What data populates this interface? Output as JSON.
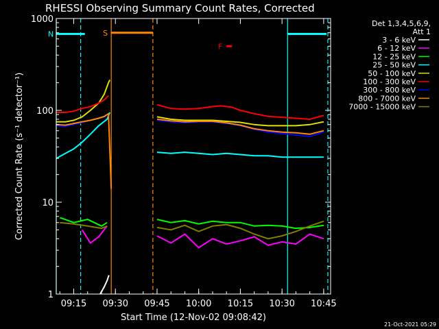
{
  "chart_data": {
    "type": "line",
    "title": "RHESSI Observing Summary Count Rates, Corrected",
    "xlabel": "Start Time (12-Nov-02 09:08:42)",
    "ylabel": "Corrected Count Rate (s⁻¹ detector⁻¹)",
    "y_scale": "log",
    "ylim": [
      1,
      1000
    ],
    "xlim": [
      "09:08:42",
      "10:47:30"
    ],
    "x_ticks": [
      "09:15",
      "09:30",
      "09:45",
      "10:00",
      "10:15",
      "10:30",
      "10:45"
    ],
    "y_ticks": [
      "1",
      "10",
      "100",
      "1000"
    ],
    "legend": {
      "placement": "top-right",
      "header": [
        "Det 1,3,4,5,6,9,",
        "Att 1"
      ]
    },
    "timestamp": "21-Oct-2021 05:29",
    "flags": [
      {
        "label": "S",
        "color": "#ff8800",
        "x_start": "09:28:30",
        "x_end": "09:43:30",
        "y": 700
      },
      {
        "label": "N",
        "color": "#00ffff",
        "x_start": "09:08:42",
        "x_end": "09:19:00",
        "y": 680
      },
      {
        "label": "F",
        "color": "#ff0000",
        "x_start": "10:10:00",
        "x_end": "10:12:00",
        "y": 500
      },
      {
        "label": "",
        "color": "#00ffff",
        "x_start": "10:32:00",
        "x_end": "10:46:00",
        "y": 680
      }
    ],
    "markers": [
      {
        "x": "09:08:42",
        "style": "solid",
        "color": "#00ffff"
      },
      {
        "x": "09:17:30",
        "style": "dashed",
        "color": "#00ffff"
      },
      {
        "x": "09:28:30",
        "style": "solid",
        "color": "#ff8800"
      },
      {
        "x": "09:43:30",
        "style": "dashed",
        "color": "#ff8800"
      },
      {
        "x": "10:32:00",
        "style": "solid",
        "color": "#00ffff"
      },
      {
        "x": "10:46:30",
        "style": "dashed",
        "color": "#00ffff"
      }
    ],
    "series": [
      {
        "name": "3 - 6 keV",
        "color": "#ffffff",
        "points": [
          [
            "09:24:30",
            1.0
          ],
          [
            "09:26:00",
            1.2
          ],
          [
            "09:27:00",
            1.4
          ],
          [
            "09:27:40",
            1.6
          ]
        ]
      },
      {
        "name": "6 - 12 keV",
        "color": "#ff00ff",
        "points": [
          [
            "09:18:00",
            5.0
          ],
          [
            "09:21:00",
            3.6
          ],
          [
            "09:24:00",
            4.2
          ],
          [
            "09:27:00",
            5.5
          ],
          [
            "09:45:00",
            4.3
          ],
          [
            "09:50:00",
            3.6
          ],
          [
            "09:55:00",
            4.5
          ],
          [
            "10:00:00",
            3.2
          ],
          [
            "10:05:00",
            4.0
          ],
          [
            "10:10:00",
            3.5
          ],
          [
            "10:15:00",
            3.8
          ],
          [
            "10:20:00",
            4.2
          ],
          [
            "10:25:00",
            3.4
          ],
          [
            "10:30:00",
            3.7
          ],
          [
            "10:35:00",
            3.5
          ],
          [
            "10:40:00",
            4.5
          ],
          [
            "10:45:00",
            4.0
          ]
        ]
      },
      {
        "name": "12 - 25 keV",
        "color": "#00ff00",
        "points": [
          [
            "09:10:00",
            6.8
          ],
          [
            "09:15:00",
            6.0
          ],
          [
            "09:20:00",
            6.5
          ],
          [
            "09:25:00",
            5.5
          ],
          [
            "09:27:00",
            6.0
          ],
          [
            "09:45:00",
            6.5
          ],
          [
            "09:50:00",
            6.0
          ],
          [
            "09:55:00",
            6.3
          ],
          [
            "10:00:00",
            5.8
          ],
          [
            "10:05:00",
            6.2
          ],
          [
            "10:10:00",
            6.0
          ],
          [
            "10:15:00",
            6.0
          ],
          [
            "10:20:00",
            5.5
          ],
          [
            "10:25:00",
            5.6
          ],
          [
            "10:30:00",
            5.5
          ],
          [
            "10:35:00",
            5.2
          ],
          [
            "10:40:00",
            5.3
          ],
          [
            "10:45:00",
            5.6
          ]
        ]
      },
      {
        "name": "25 - 50 keV",
        "color": "#00ffff",
        "points": [
          [
            "09:08:42",
            30
          ],
          [
            "09:12:00",
            34
          ],
          [
            "09:15:00",
            38
          ],
          [
            "09:18:00",
            45
          ],
          [
            "09:21:00",
            55
          ],
          [
            "09:24:00",
            68
          ],
          [
            "09:27:00",
            80
          ],
          [
            "09:28:00",
            95
          ],
          [
            "09:45:00",
            35
          ],
          [
            "09:50:00",
            34
          ],
          [
            "09:55:00",
            35
          ],
          [
            "10:00:00",
            34
          ],
          [
            "10:05:00",
            33
          ],
          [
            "10:10:00",
            34
          ],
          [
            "10:15:00",
            33
          ],
          [
            "10:20:00",
            32
          ],
          [
            "10:25:00",
            32
          ],
          [
            "10:30:00",
            31
          ],
          [
            "10:35:00",
            31
          ],
          [
            "10:40:00",
            31
          ],
          [
            "10:45:00",
            31
          ]
        ]
      },
      {
        "name": "50 - 100 keV",
        "color": "#e0e000",
        "points": [
          [
            "09:08:42",
            75
          ],
          [
            "09:12:00",
            75
          ],
          [
            "09:15:00",
            78
          ],
          [
            "09:18:00",
            85
          ],
          [
            "09:21:00",
            100
          ],
          [
            "09:24:00",
            120
          ],
          [
            "09:26:00",
            150
          ],
          [
            "09:27:30",
            200
          ],
          [
            "09:28:00",
            215
          ],
          [
            "09:45:00",
            85
          ],
          [
            "09:50:00",
            80
          ],
          [
            "09:55:00",
            78
          ],
          [
            "10:00:00",
            78
          ],
          [
            "10:05:00",
            78
          ],
          [
            "10:10:00",
            76
          ],
          [
            "10:15:00",
            74
          ],
          [
            "10:20:00",
            70
          ],
          [
            "10:25:00",
            68
          ],
          [
            "10:30:00",
            68
          ],
          [
            "10:35:00",
            68
          ],
          [
            "10:40:00",
            70
          ],
          [
            "10:45:00",
            75
          ]
        ]
      },
      {
        "name": "100 - 300 keV",
        "color": "#ff0000",
        "points": [
          [
            "09:08:42",
            95
          ],
          [
            "09:12:00",
            95
          ],
          [
            "09:15:00",
            98
          ],
          [
            "09:18:00",
            105
          ],
          [
            "09:21:00",
            110
          ],
          [
            "09:24:00",
            120
          ],
          [
            "09:26:00",
            130
          ],
          [
            "09:27:30",
            145
          ],
          [
            "09:45:00",
            115
          ],
          [
            "09:50:00",
            105
          ],
          [
            "09:55:00",
            103
          ],
          [
            "10:00:00",
            105
          ],
          [
            "10:05:00",
            110
          ],
          [
            "10:08:00",
            112
          ],
          [
            "10:12:00",
            108
          ],
          [
            "10:15:00",
            100
          ],
          [
            "10:20:00",
            92
          ],
          [
            "10:25:00",
            86
          ],
          [
            "10:30:00",
            84
          ],
          [
            "10:35:00",
            82
          ],
          [
            "10:40:00",
            80
          ],
          [
            "10:45:00",
            88
          ]
        ]
      },
      {
        "name": "300 - 800 keV",
        "color": "#0000ff",
        "points": [
          [
            "09:08:42",
            68
          ],
          [
            "09:12:00",
            67
          ],
          [
            "09:15:00",
            70
          ],
          [
            "09:18:00",
            74
          ],
          [
            "09:21:00",
            78
          ],
          [
            "09:24:00",
            82
          ],
          [
            "09:26:00",
            85
          ],
          [
            "09:27:30",
            90
          ],
          [
            "09:45:00",
            78
          ],
          [
            "09:50:00",
            75
          ],
          [
            "09:55:00",
            73
          ],
          [
            "10:00:00",
            75
          ],
          [
            "10:05:00",
            75
          ],
          [
            "10:10:00",
            72
          ],
          [
            "10:15:00",
            68
          ],
          [
            "10:20:00",
            62
          ],
          [
            "10:25:00",
            58
          ],
          [
            "10:30:00",
            56
          ],
          [
            "10:35:00",
            54
          ],
          [
            "10:40:00",
            52
          ],
          [
            "10:45:00",
            58
          ]
        ]
      },
      {
        "name": "800 - 7000 keV",
        "color": "#ff8800",
        "points": [
          [
            "09:08:42",
            70
          ],
          [
            "09:12:00",
            69
          ],
          [
            "09:15:00",
            72
          ],
          [
            "09:18:00",
            75
          ],
          [
            "09:21:00",
            78
          ],
          [
            "09:24:00",
            82
          ],
          [
            "09:26:00",
            86
          ],
          [
            "09:27:30",
            92
          ],
          [
            "09:28:30",
            14
          ],
          [
            "09:45:00",
            80
          ],
          [
            "09:50:00",
            77
          ],
          [
            "09:55:00",
            75
          ],
          [
            "10:00:00",
            76
          ],
          [
            "10:05:00",
            76
          ],
          [
            "10:10:00",
            73
          ],
          [
            "10:15:00",
            69
          ],
          [
            "10:20:00",
            63
          ],
          [
            "10:25:00",
            60
          ],
          [
            "10:30:00",
            58
          ],
          [
            "10:35:00",
            57
          ],
          [
            "10:40:00",
            55
          ],
          [
            "10:45:00",
            60
          ]
        ]
      },
      {
        "name": "7000 - 15000 keV",
        "color": "#808000",
        "points": [
          [
            "09:10:00",
            6.0
          ],
          [
            "09:15:00",
            5.8
          ],
          [
            "09:20:00",
            5.5
          ],
          [
            "09:25:00",
            5.2
          ],
          [
            "09:27:00",
            5.5
          ],
          [
            "09:45:00",
            5.3
          ],
          [
            "09:50:00",
            5.0
          ],
          [
            "09:55:00",
            5.6
          ],
          [
            "10:00:00",
            4.8
          ],
          [
            "10:05:00",
            5.5
          ],
          [
            "10:10:00",
            5.7
          ],
          [
            "10:15:00",
            5.2
          ],
          [
            "10:20:00",
            4.5
          ],
          [
            "10:25:00",
            4.0
          ],
          [
            "10:30:00",
            4.3
          ],
          [
            "10:35:00",
            4.8
          ],
          [
            "10:40:00",
            5.5
          ],
          [
            "10:45:00",
            6.2
          ]
        ]
      }
    ]
  }
}
